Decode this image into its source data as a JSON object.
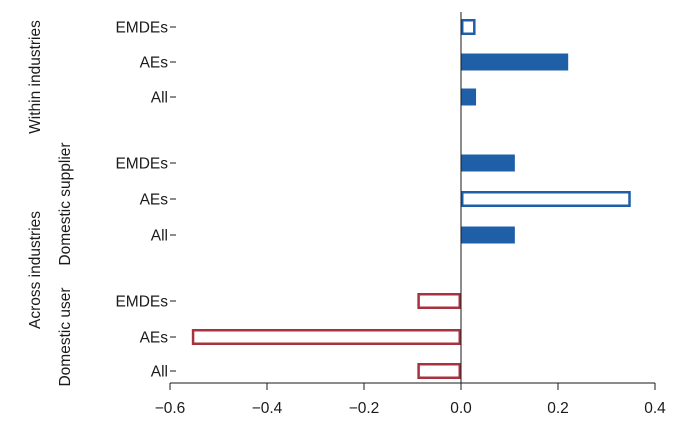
{
  "chart_data": {
    "type": "bar",
    "orientation": "horizontal",
    "groups": [
      {
        "label": "Within industries",
        "subgroup": ""
      },
      {
        "label": "Across industries",
        "subgroup": "Domestic supplier"
      },
      {
        "label": "Across industries",
        "subgroup": "Domestic user"
      }
    ],
    "group_labels": {
      "within": "Within industries",
      "across": "Across industries",
      "supplier": "Domestic supplier",
      "user": "Domestic user"
    },
    "bars": [
      {
        "group": "Within industries",
        "category": "EMDEs",
        "value": 0.03,
        "style": "outline",
        "color": "#1f5fa8"
      },
      {
        "group": "Within industries",
        "category": "AEs",
        "value": 0.22,
        "style": "filled",
        "color": "#1f5fa8"
      },
      {
        "group": "Within industries",
        "category": "All",
        "value": 0.03,
        "style": "filled",
        "color": "#1f5fa8"
      },
      {
        "group": "Domestic supplier",
        "category": "EMDEs",
        "value": 0.11,
        "style": "filled",
        "color": "#1f5fa8"
      },
      {
        "group": "Domestic supplier",
        "category": "AEs",
        "value": 0.35,
        "style": "outline",
        "color": "#1f5fa8"
      },
      {
        "group": "Domestic supplier",
        "category": "All",
        "value": 0.11,
        "style": "filled",
        "color": "#1f5fa8"
      },
      {
        "group": "Domestic user",
        "category": "EMDEs",
        "value": -0.09,
        "style": "outline",
        "color": "#a8323e"
      },
      {
        "group": "Domestic user",
        "category": "AEs",
        "value": -0.555,
        "style": "outline",
        "color": "#a8323e"
      },
      {
        "group": "Domestic user",
        "category": "All",
        "value": -0.09,
        "style": "outline",
        "color": "#a8323e"
      }
    ],
    "xlim": [
      -0.6,
      0.4
    ],
    "xticks": [
      -0.6,
      -0.4,
      -0.2,
      0.0,
      0.2,
      0.4
    ],
    "xtick_labels": [
      "−0.6",
      "−0.4",
      "−0.2",
      "0.0",
      "0.2",
      "0.4"
    ],
    "title": "",
    "xlabel": "",
    "ylabel": "",
    "grid": false,
    "legend": "none"
  }
}
